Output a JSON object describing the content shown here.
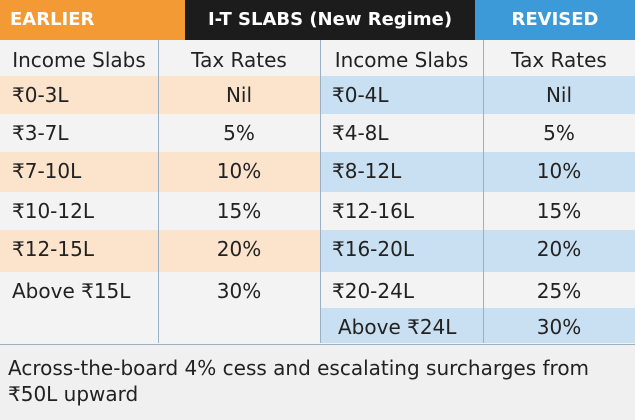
{
  "banner": {
    "left": "EARLIER",
    "middle": "I-T SLABS (New Regime)",
    "right": "REVISED"
  },
  "colors": {
    "earlier_orange": "#f39a34",
    "revised_blue": "#3d9ad8",
    "orange_row": "#fbe3cc",
    "blue_row": "#c9e0f2",
    "plain_row": "#f3f3f3"
  },
  "earlier": {
    "header_slab": "Income Slabs",
    "header_rate": "Tax Rates",
    "rows": [
      {
        "slab": "₹0-3L",
        "rate": "Nil"
      },
      {
        "slab": "₹3-7L",
        "rate": "5%"
      },
      {
        "slab": "₹7-10L",
        "rate": "10%"
      },
      {
        "slab": "₹10-12L",
        "rate": "15%"
      },
      {
        "slab": "₹12-15L",
        "rate": "20%"
      },
      {
        "slab": "Above ₹15L",
        "rate": "30%"
      }
    ]
  },
  "revised": {
    "header_slab": "Income Slabs",
    "header_rate": "Tax Rates",
    "rows": [
      {
        "slab": "₹0-4L",
        "rate": "Nil"
      },
      {
        "slab": "₹4-8L",
        "rate": "5%"
      },
      {
        "slab": "₹8-12L",
        "rate": "10%"
      },
      {
        "slab": "₹12-16L",
        "rate": "15%"
      },
      {
        "slab": "₹16-20L",
        "rate": "20%"
      },
      {
        "slab": "₹20-24L",
        "rate": "25%"
      },
      {
        "slab": "Above ₹24L",
        "rate": "30%"
      }
    ]
  },
  "footer_note": "Across-the-board 4% cess and escalating surcharges from ₹50L upward"
}
